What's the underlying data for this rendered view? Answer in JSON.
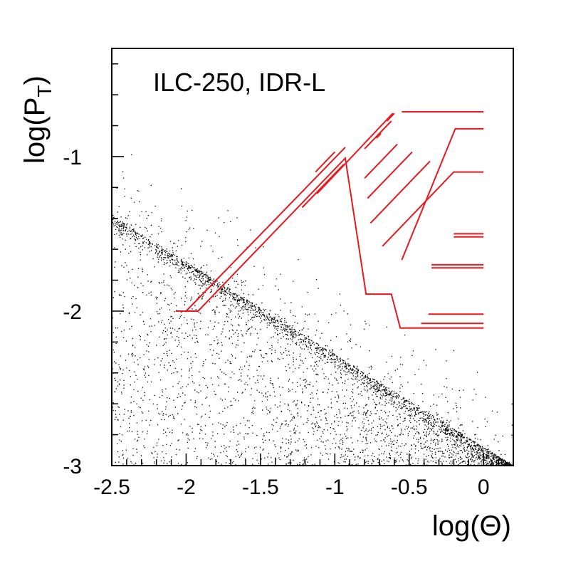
{
  "chart_data": {
    "type": "scatter",
    "title": "",
    "xlabel": "log(Θ)",
    "ylabel_main": "log(P",
    "ylabel_sub": "T",
    "ylabel_close": ")",
    "annotation": "ILC-250, IDR-L",
    "xlim": [
      -2.5,
      0.2
    ],
    "ylim": [
      -3,
      -0.3
    ],
    "x_ticks": [
      {
        "value": -2.5,
        "label": "-2.5"
      },
      {
        "value": -2,
        "label": "-2"
      },
      {
        "value": -1.5,
        "label": "-1.5"
      },
      {
        "value": -1,
        "label": "-1"
      },
      {
        "value": -0.5,
        "label": "-0.5"
      },
      {
        "value": 0,
        "label": "0"
      }
    ],
    "y_ticks": [
      {
        "value": -3,
        "label": "-3"
      },
      {
        "value": -2,
        "label": "-2"
      },
      {
        "value": -1,
        "label": "-1"
      }
    ],
    "scatter_color": "#000000",
    "line_color": "#e8181c",
    "band": {
      "x_start": -2.5,
      "x_end": 0.2,
      "y_start": -1.38,
      "y_end": -3.0
    },
    "red_polylines": [
      [
        [
          -2.07,
          -2.0
        ],
        [
          -1.92,
          -2.0
        ],
        [
          -0.93,
          -1.01
        ],
        [
          -0.79,
          -1.89
        ],
        [
          -0.62,
          -1.89
        ],
        [
          -0.56,
          -2.11
        ],
        [
          0.0,
          -2.11
        ]
      ],
      [
        [
          -2.0,
          -2.0
        ],
        [
          -0.93,
          -0.94
        ]
      ],
      [
        [
          -1.12,
          -1.24
        ],
        [
          -0.61,
          -0.72
        ]
      ],
      [
        [
          -1.22,
          -1.33
        ],
        [
          -0.94,
          -1.05
        ]
      ],
      [
        [
          -1.13,
          -1.1
        ],
        [
          -1.0,
          -0.97
        ]
      ],
      [
        [
          -0.8,
          -0.95
        ],
        [
          -0.62,
          -0.77
        ]
      ],
      [
        [
          -0.8,
          -1.14
        ],
        [
          -0.58,
          -0.92
        ]
      ],
      [
        [
          -0.78,
          -1.27
        ],
        [
          -0.48,
          -0.97
        ]
      ],
      [
        [
          -0.76,
          -1.43
        ],
        [
          -0.36,
          -1.03
        ]
      ],
      [
        [
          -0.68,
          -1.58
        ],
        [
          -0.2,
          -1.1
        ],
        [
          0.0,
          -1.1
        ]
      ],
      [
        [
          -0.55,
          -1.67
        ],
        [
          -0.19,
          -0.82
        ],
        [
          0.0,
          -0.82
        ]
      ],
      [
        [
          -0.72,
          -0.88
        ],
        [
          -0.69,
          -0.85
        ]
      ],
      [
        [
          -0.65,
          -0.77
        ],
        [
          -0.6,
          -0.72
        ]
      ],
      [
        [
          -0.55,
          -0.71
        ],
        [
          0.0,
          -0.71
        ]
      ],
      [
        [
          -0.2,
          -1.5
        ],
        [
          0.0,
          -1.5
        ]
      ],
      [
        [
          -0.2,
          -1.52
        ],
        [
          0.0,
          -1.52
        ]
      ],
      [
        [
          -0.35,
          -1.7
        ],
        [
          0.0,
          -1.7
        ]
      ],
      [
        [
          -0.35,
          -1.72
        ],
        [
          0.0,
          -1.72
        ]
      ],
      [
        [
          -0.37,
          -2.02
        ],
        [
          0.0,
          -2.02
        ]
      ],
      [
        [
          -0.42,
          -2.08
        ],
        [
          0.0,
          -2.08
        ]
      ]
    ]
  }
}
